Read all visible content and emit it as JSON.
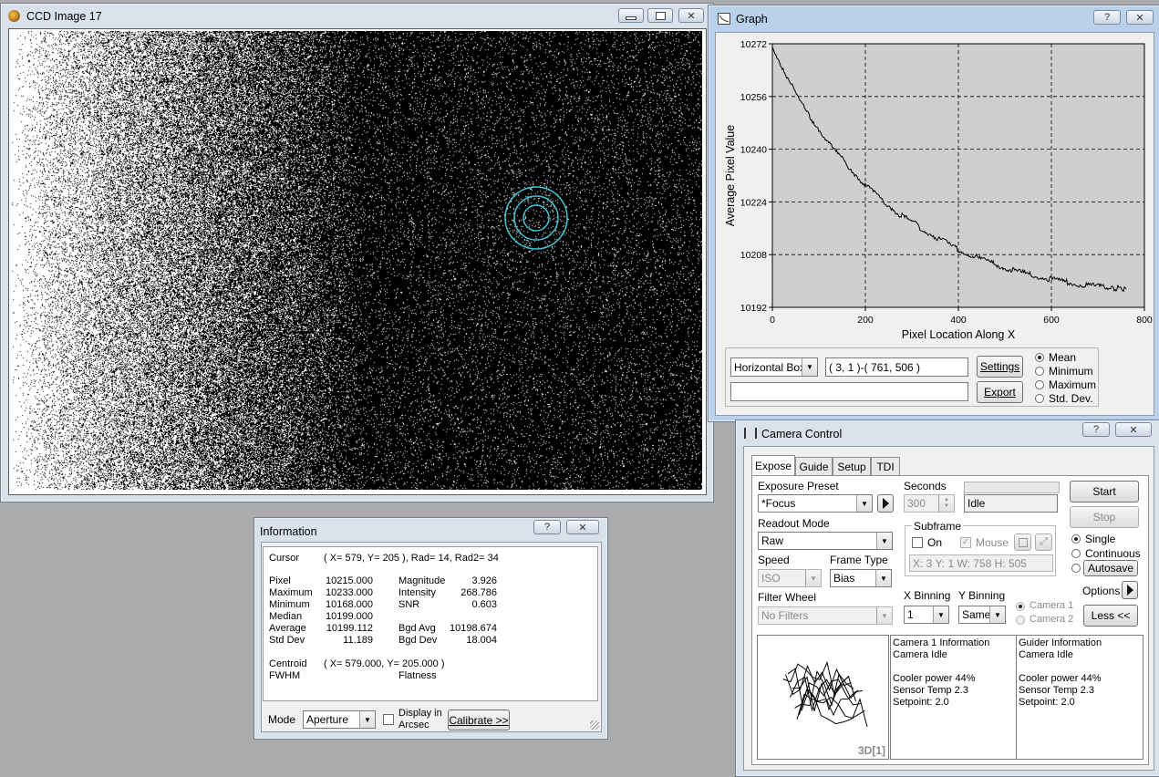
{
  "ccd": {
    "title": "CCD Image 17",
    "controls": {
      "min": "▭",
      "max": "▢",
      "close": "✕"
    }
  },
  "graph": {
    "title": "Graph",
    "help": "?",
    "close": "✕",
    "mode_select": "Horizontal Box",
    "region": "( 3, 1 )-( 761, 506 )",
    "settings_label": "Settings",
    "export_label": "Export",
    "status_text": "",
    "stat_options": [
      "Mean",
      "Minimum",
      "Maximum",
      "Std. Dev."
    ],
    "stat_selected": "Mean"
  },
  "chart_data": {
    "type": "line",
    "xlabel": "Pixel Location Along X",
    "ylabel": "Average Pixel Value",
    "xlim": [
      0,
      800
    ],
    "ylim": [
      10192,
      10272
    ],
    "x_ticks": [
      "0",
      "200",
      "400",
      "600",
      "800"
    ],
    "y_ticks": [
      "10192",
      "10208",
      "10224",
      "10240",
      "10256",
      "10272"
    ],
    "grid": true,
    "series": [
      {
        "x": [
          0,
          25,
          50,
          75,
          100,
          125,
          150,
          175,
          200,
          225,
          250,
          275,
          300,
          325,
          350,
          375,
          400,
          425,
          450,
          475,
          500,
          525,
          550,
          575,
          600,
          625,
          650,
          675,
          700,
          725,
          761
        ],
        "y": [
          10271,
          10264,
          10257,
          10251,
          10246,
          10241,
          10237,
          10233,
          10229,
          10226,
          10223,
          10220,
          10218,
          10215.5,
          10213.5,
          10211.5,
          10209.5,
          10208,
          10206.5,
          10205.3,
          10204,
          10203,
          10202,
          10201.2,
          10200.5,
          10199.8,
          10199.2,
          10198.7,
          10198.3,
          10198,
          10197.6
        ]
      }
    ]
  },
  "information": {
    "title": "Information",
    "help": "?",
    "close": "✕",
    "cursor_label": "Cursor",
    "cursor_value": "( X=  579, Y=  205 ), Rad= 14, Rad2= 34",
    "left_stats": [
      {
        "label": "Pixel",
        "value": "10215.000"
      },
      {
        "label": "Maximum",
        "value": "10233.000"
      },
      {
        "label": "Minimum",
        "value": "10168.000"
      },
      {
        "label": "Median",
        "value": "10199.000"
      },
      {
        "label": "Average",
        "value": "10199.112"
      },
      {
        "label": "Std Dev",
        "value": "11.189"
      }
    ],
    "right_stats": [
      {
        "label": "Magnitude",
        "value": "3.926"
      },
      {
        "label": "Intensity",
        "value": "268.786"
      },
      {
        "label": "SNR",
        "value": "0.603"
      },
      {
        "label": "",
        "value": ""
      },
      {
        "label": "Bgd Avg",
        "value": "10198.674"
      },
      {
        "label": "Bgd Dev",
        "value": "18.004"
      }
    ],
    "centroid_label": "Centroid",
    "centroid_value": "( X=  579.000, Y=  205.000 )",
    "fwhm_label": "FWHM",
    "flatness_label": "Flatness",
    "mode_label": "Mode",
    "mode_value": "Aperture",
    "arcsec_label_1": "Display in",
    "arcsec_label_2": "Arcsec",
    "calibrate_label": "Calibrate >>"
  },
  "camera": {
    "title": "Camera Control",
    "help": "?",
    "close": "✕",
    "tabs": [
      "Expose",
      "Guide",
      "Setup",
      "TDI"
    ],
    "exposure_preset_label": "Exposure Preset",
    "exposure_preset_value": "*Focus",
    "seconds_label": "Seconds",
    "seconds_value": "300",
    "status_value": "Idle",
    "start_label": "Start",
    "stop_label": "Stop",
    "readout_label": "Readout Mode",
    "readout_value": "Raw",
    "subframe_label": "Subframe",
    "on_label": "On",
    "mouse_label": "Mouse",
    "subframe_info": "X:   3 Y:   1 W: 758 H: 505",
    "speed_label": "Speed",
    "speed_value": "ISO",
    "frame_type_label": "Frame Type",
    "frame_type_value": "Bias",
    "mode_options": [
      "Single",
      "Continuous",
      "Autosave"
    ],
    "mode_selected": "Single",
    "options_label": "Options",
    "filter_label": "Filter Wheel",
    "filter_value": "No Filters",
    "xbin_label": "X Binning",
    "xbin_value": "1",
    "ybin_label": "Y Binning",
    "ybin_value": "Same",
    "camera1_label": "Camera 1",
    "camera2_label": "Camera 2",
    "less_label": "Less <<",
    "preview_label": "3D[1]",
    "camera_info": [
      "Camera 1 Information",
      "Camera Idle",
      "",
      "Cooler power 44%",
      "Sensor Temp 2.3",
      "Setpoint: 2.0"
    ],
    "guider_info": [
      "Guider Information",
      "Camera Idle",
      "",
      "Cooler power 44%",
      "Sensor Temp 2.3",
      "Setpoint: 2.0"
    ]
  }
}
